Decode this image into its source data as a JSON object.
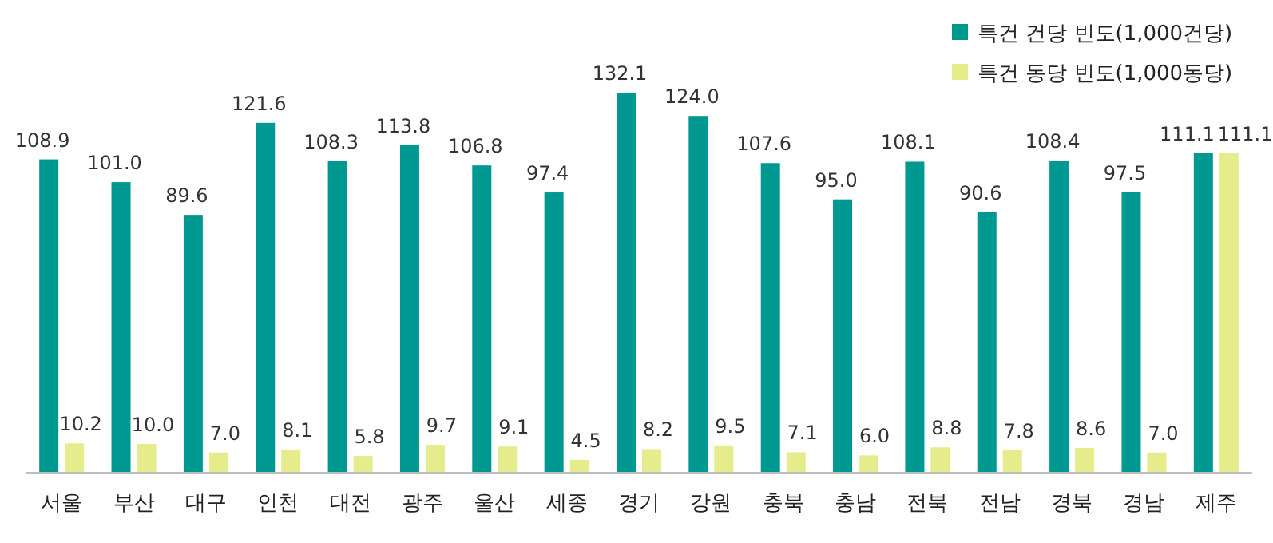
{
  "chart_data": {
    "type": "bar",
    "categories": [
      "서울",
      "부산",
      "대구",
      "인천",
      "대전",
      "광주",
      "울산",
      "세종",
      "경기",
      "강원",
      "충북",
      "충남",
      "전북",
      "전남",
      "경북",
      "경남",
      "제주"
    ],
    "series": [
      {
        "name": "특건 건당 빈도(1,000건당)",
        "color": "#009991",
        "values": [
          108.9,
          101.0,
          89.6,
          121.6,
          108.3,
          113.8,
          106.8,
          97.4,
          132.1,
          124.0,
          107.6,
          95.0,
          108.1,
          90.6,
          108.4,
          97.5,
          111.1
        ],
        "value_labels": [
          "108.9",
          "101.0",
          "89.6",
          "121.6",
          "108.3",
          "113.8",
          "106.8",
          "97.4",
          "132.1",
          "124.0",
          "107.6",
          "95.0",
          "108.1",
          "90.6",
          "108.4",
          "97.5",
          "111.1"
        ]
      },
      {
        "name": "특건 동당 빈도(1,000동당)",
        "color": "#e6eb8c",
        "values": [
          10.2,
          10.0,
          7.0,
          8.1,
          5.8,
          9.7,
          9.1,
          4.5,
          8.2,
          9.5,
          7.1,
          6.0,
          8.8,
          7.8,
          8.6,
          7.0,
          111.1
        ],
        "value_labels": [
          "10.2",
          "10.0",
          "7.0",
          "8.1",
          "5.8",
          "9.7",
          "9.1",
          "4.5",
          "8.2",
          "9.5",
          "7.1",
          "6.0",
          "8.8",
          "7.8",
          "8.6",
          "7.0",
          "111.1"
        ]
      }
    ],
    "legend": "top right"
  }
}
